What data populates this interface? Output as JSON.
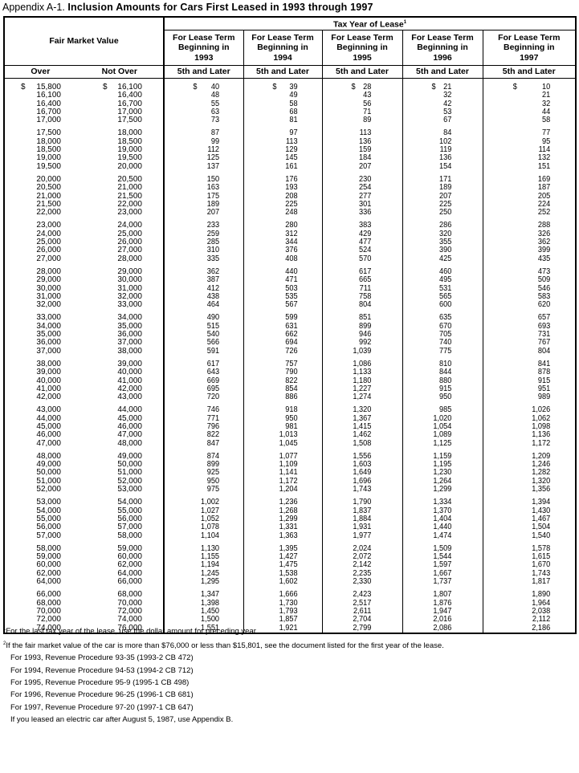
{
  "title": {
    "prefix": "Appendix A-1.",
    "main": "Inclusion Amounts for Cars First Leased in 1993 through 1997"
  },
  "header": {
    "tax_year": "Tax Year of Lease",
    "tax_year_note": "1",
    "fmv": "Fair Market Value",
    "over": "Over",
    "not_over": "Not Over",
    "columns": [
      {
        "line1": "For Lease Term",
        "line2": "Beginning in",
        "year": "1993",
        "sub": "5th and Later"
      },
      {
        "line1": "For Lease Term",
        "line2": "Beginning in",
        "year": "1994",
        "sub": "5th and Later"
      },
      {
        "line1": "For Lease Term",
        "line2": "Beginning in",
        "year": "1995",
        "sub": "5th and Later"
      },
      {
        "line1": "For Lease Term",
        "line2": "Beginning in",
        "year": "1996",
        "sub": "5th and Later"
      },
      {
        "line1": "For Lease Term",
        "line2": "Beginning in",
        "year": "1997",
        "sub": "5th and Later"
      }
    ]
  },
  "currency_symbol": "$",
  "groups": [
    [
      [
        "15,800",
        "16,100",
        "40",
        "39",
        "28",
        "21",
        "10"
      ],
      [
        "16,100",
        "16,400",
        "48",
        "49",
        "43",
        "32",
        "21"
      ],
      [
        "16,400",
        "16,700",
        "55",
        "58",
        "56",
        "42",
        "32"
      ],
      [
        "16,700",
        "17,000",
        "63",
        "68",
        "71",
        "53",
        "44"
      ],
      [
        "17,000",
        "17,500",
        "73",
        "81",
        "89",
        "67",
        "58"
      ]
    ],
    [
      [
        "17,500",
        "18,000",
        "87",
        "97",
        "113",
        "84",
        "77"
      ],
      [
        "18,000",
        "18,500",
        "99",
        "113",
        "136",
        "102",
        "95"
      ],
      [
        "18,500",
        "19,000",
        "112",
        "129",
        "159",
        "119",
        "114"
      ],
      [
        "19,000",
        "19,500",
        "125",
        "145",
        "184",
        "136",
        "132"
      ],
      [
        "19,500",
        "20,000",
        "137",
        "161",
        "207",
        "154",
        "151"
      ]
    ],
    [
      [
        "20,000",
        "20,500",
        "150",
        "176",
        "230",
        "171",
        "169"
      ],
      [
        "20,500",
        "21,000",
        "163",
        "193",
        "254",
        "189",
        "187"
      ],
      [
        "21,000",
        "21,500",
        "175",
        "208",
        "277",
        "207",
        "205"
      ],
      [
        "21,500",
        "22,000",
        "189",
        "225",
        "301",
        "225",
        "224"
      ],
      [
        "22,000",
        "23,000",
        "207",
        "248",
        "336",
        "250",
        "252"
      ]
    ],
    [
      [
        "23,000",
        "24,000",
        "233",
        "280",
        "383",
        "286",
        "288"
      ],
      [
        "24,000",
        "25,000",
        "259",
        "312",
        "429",
        "320",
        "326"
      ],
      [
        "25,000",
        "26,000",
        "285",
        "344",
        "477",
        "355",
        "362"
      ],
      [
        "26,000",
        "27,000",
        "310",
        "376",
        "524",
        "390",
        "399"
      ],
      [
        "27,000",
        "28,000",
        "335",
        "408",
        "570",
        "425",
        "435"
      ]
    ],
    [
      [
        "28,000",
        "29,000",
        "362",
        "440",
        "617",
        "460",
        "473"
      ],
      [
        "29,000",
        "30,000",
        "387",
        "471",
        "665",
        "495",
        "509"
      ],
      [
        "30,000",
        "31,000",
        "412",
        "503",
        "711",
        "531",
        "546"
      ],
      [
        "31,000",
        "32,000",
        "438",
        "535",
        "758",
        "565",
        "583"
      ],
      [
        "32,000",
        "33,000",
        "464",
        "567",
        "804",
        "600",
        "620"
      ]
    ],
    [
      [
        "33,000",
        "34,000",
        "490",
        "599",
        "851",
        "635",
        "657"
      ],
      [
        "34,000",
        "35,000",
        "515",
        "631",
        "899",
        "670",
        "693"
      ],
      [
        "35,000",
        "36,000",
        "540",
        "662",
        "946",
        "705",
        "731"
      ],
      [
        "36,000",
        "37,000",
        "566",
        "694",
        "992",
        "740",
        "767"
      ],
      [
        "37,000",
        "38,000",
        "591",
        "726",
        "1,039",
        "775",
        "804"
      ]
    ],
    [
      [
        "38,000",
        "39,000",
        "617",
        "757",
        "1,086",
        "810",
        "841"
      ],
      [
        "39,000",
        "40,000",
        "643",
        "790",
        "1,133",
        "844",
        "878"
      ],
      [
        "40,000",
        "41,000",
        "669",
        "822",
        "1,180",
        "880",
        "915"
      ],
      [
        "41,000",
        "42,000",
        "695",
        "854",
        "1,227",
        "915",
        "951"
      ],
      [
        "42,000",
        "43,000",
        "720",
        "886",
        "1,274",
        "950",
        "989"
      ]
    ],
    [
      [
        "43,000",
        "44,000",
        "746",
        "918",
        "1,320",
        "985",
        "1,026"
      ],
      [
        "44,000",
        "45,000",
        "771",
        "950",
        "1,367",
        "1,020",
        "1,062"
      ],
      [
        "45,000",
        "46,000",
        "796",
        "981",
        "1,415",
        "1,054",
        "1,098"
      ],
      [
        "46,000",
        "47,000",
        "822",
        "1,013",
        "1,462",
        "1,089",
        "1,136"
      ],
      [
        "47,000",
        "48,000",
        "847",
        "1,045",
        "1,508",
        "1,125",
        "1,172"
      ]
    ],
    [
      [
        "48,000",
        "49,000",
        "874",
        "1,077",
        "1,556",
        "1,159",
        "1,209"
      ],
      [
        "49,000",
        "50,000",
        "899",
        "1,109",
        "1,603",
        "1,195",
        "1,246"
      ],
      [
        "50,000",
        "51,000",
        "925",
        "1,141",
        "1,649",
        "1,230",
        "1,282"
      ],
      [
        "51,000",
        "52,000",
        "950",
        "1,172",
        "1,696",
        "1,264",
        "1,320"
      ],
      [
        "52,000",
        "53,000",
        "975",
        "1,204",
        "1,743",
        "1,299",
        "1,356"
      ]
    ],
    [
      [
        "53,000",
        "54,000",
        "1,002",
        "1,236",
        "1,790",
        "1,334",
        "1,394"
      ],
      [
        "54,000",
        "55,000",
        "1,027",
        "1,268",
        "1,837",
        "1,370",
        "1,430"
      ],
      [
        "55,000",
        "56,000",
        "1,052",
        "1,299",
        "1,884",
        "1,404",
        "1,467"
      ],
      [
        "56,000",
        "57,000",
        "1,078",
        "1,331",
        "1,931",
        "1,440",
        "1,504"
      ],
      [
        "57,000",
        "58,000",
        "1,104",
        "1,363",
        "1,977",
        "1,474",
        "1,540"
      ]
    ],
    [
      [
        "58,000",
        "59,000",
        "1,130",
        "1,395",
        "2,024",
        "1,509",
        "1,578"
      ],
      [
        "59,000",
        "60,000",
        "1,155",
        "1,427",
        "2,072",
        "1,544",
        "1,615"
      ],
      [
        "60,000",
        "62,000",
        "1,194",
        "1,475",
        "2,142",
        "1,597",
        "1,670"
      ],
      [
        "62,000",
        "64,000",
        "1,245",
        "1,538",
        "2,235",
        "1,667",
        "1,743"
      ],
      [
        "64,000",
        "66,000",
        "1,295",
        "1,602",
        "2,330",
        "1,737",
        "1,817"
      ]
    ],
    [
      [
        "66,000",
        "68,000",
        "1,347",
        "1,666",
        "2,423",
        "1,807",
        "1,890"
      ],
      [
        "68,000",
        "70,000",
        "1,398",
        "1,730",
        "2,517",
        "1,876",
        "1,964"
      ],
      [
        "70,000",
        "72,000",
        "1,450",
        "1,793",
        "2,611",
        "1,947",
        "2,038"
      ],
      [
        "72,000",
        "74,000",
        "1,500",
        "1,857",
        "2,704",
        "2,016",
        "2,112"
      ],
      [
        "74,000",
        "76,000",
        "1,551",
        "1,921",
        "2,799",
        "2,086",
        "2,186"
      ]
    ]
  ],
  "footnotes": {
    "n1_mark": "1",
    "n1": "For the last tax year of the lease, use the dollar amount for preceding year.",
    "n2_mark": "2",
    "n2": "If the fair market value of the car is more than $76,000 or less than $15,801, see the document listed for the first year of the lease.",
    "refs": [
      "For 1993, Revenue Procedure 93-35 (1993-2 CB 472)",
      "For 1994, Revenue Procedure 94-53 (1994-2 CB 712)",
      "For 1995, Revenue Procedure 95-9 (1995-1 CB 498)",
      "For 1996, Revenue Procedure 96-25 (1996-1 CB 681)",
      "For 1997, Revenue Procedure 97-20 (1997-1 CB 647)"
    ],
    "electric": "If you leased an electric car after August 5, 1987, use Appendix B."
  }
}
